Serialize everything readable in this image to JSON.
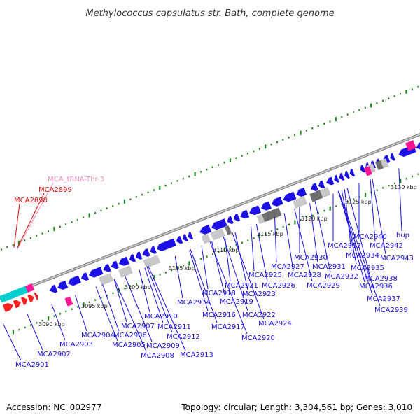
{
  "title": "Methylococcus capsulatus str. Bath, complete genome",
  "footer": {
    "accession": "Accession: NC_002977",
    "info": "Topology: circular; Length: 3,304,561 bp; Genes: 3,010"
  },
  "colors": {
    "cds": "#1c10e6",
    "cds_light": "#8a84f0",
    "trna": "#ff1493",
    "rna": "#ff0000",
    "misc": "#00ced1",
    "pseudo": "#c8c8c8",
    "pseudo_dark": "#6e6e6e",
    "tick": "#1e8a1e",
    "label": "#1c10e6",
    "red_label": "#e01010",
    "pink_label": "#f090c0"
  },
  "scale_labels": [
    "3090 kbp",
    "3095 kbp",
    "3100 kbp",
    "3105 kbp",
    "3110 kbp",
    "3115 kbp",
    "3120 kbp",
    "3125 kbp",
    "3130 kbp"
  ],
  "red_labels": [
    "MCA_tRNA-Thr-3",
    "MCA2899",
    "MCA2898"
  ],
  "gene_labels": [
    "MCA2901",
    "MCA2902",
    "MCA2903",
    "MCA2904",
    "MCA2905",
    "MCA2906",
    "MCA2907",
    "MCA2908",
    "MCA2909",
    "MCA2910",
    "MCA2911",
    "MCA2912",
    "MCA2913",
    "MCA2914",
    "MCA2916",
    "MCA2917",
    "MCA2918",
    "MCA2919",
    "MCA2920",
    "MCA2921",
    "MCA2922",
    "MCA2923",
    "MCA2924",
    "MCA2925",
    "MCA2926",
    "MCA2927",
    "MCA2928",
    "MCA2929",
    "MCA2930",
    "MCA2931",
    "MCA2932",
    "MCA2933",
    "MCA2934",
    "MCA2935",
    "MCA2936",
    "MCA2937",
    "MCA2938",
    "MCA2939",
    "MCA2940",
    "MCA2942",
    "MCA2943",
    "hup"
  ]
}
